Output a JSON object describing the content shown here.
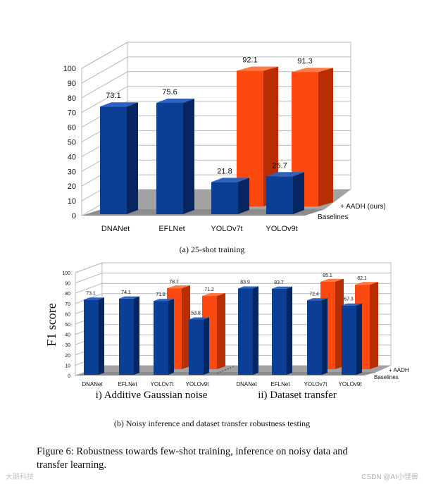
{
  "chart_data": [
    {
      "type": "bar",
      "style": "3d",
      "categories": [
        "DNANet",
        "EFLNet",
        "YOLOv7t",
        "YOLOv9t"
      ],
      "series": [
        {
          "name": "Baselines",
          "values": [
            73.1,
            75.6,
            21.8,
            25.7
          ]
        },
        {
          "name": "+ AADH (ours)",
          "values": [
            null,
            null,
            92.1,
            91.3
          ]
        }
      ],
      "ylim": [
        0,
        100
      ],
      "yticks": [
        "0",
        "10",
        "20",
        "30",
        "40",
        "50",
        "60",
        "70",
        "80",
        "90",
        "100"
      ],
      "title": "",
      "xlabel": "",
      "ylabel": ""
    },
    {
      "type": "bar",
      "style": "3d",
      "ylabel": "F1 score",
      "ylim": [
        0,
        100
      ],
      "yticks": [
        "0",
        "10",
        "20",
        "30",
        "40",
        "50",
        "60",
        "70",
        "80",
        "90",
        "100"
      ],
      "groups": [
        {
          "label": "i) Additive Gaussian noise",
          "categories": [
            "DNANet",
            "EFLNet",
            "YOLOv7t",
            "YOLOv9t"
          ],
          "series": [
            {
              "name": "Baselines",
              "values": [
                73.1,
                74.1,
                71.8,
                53.8
              ]
            },
            {
              "name": "+ AADH",
              "values": [
                null,
                null,
                78.7,
                71.2
              ]
            }
          ]
        },
        {
          "label": "ii) Dataset transfer",
          "categories": [
            "DNANet",
            "EFLNet",
            "YOLOv7t",
            "YOLOv9t"
          ],
          "series": [
            {
              "name": "Baselines",
              "values": [
                83.9,
                83.7,
                72.4,
                67.3
              ]
            },
            {
              "name": "+ AADH",
              "values": [
                null,
                null,
                85.1,
                82.1
              ]
            }
          ]
        }
      ]
    }
  ],
  "colors": {
    "baseline_front": "#0b3f96",
    "baseline_side": "#052660",
    "baseline_top": "#2d63bf",
    "ours_front": "#fb4910",
    "ours_side": "#b92d02",
    "ours_top": "#ff7a45",
    "floor": "#8c8c8c",
    "grid": "#b8b8b8"
  },
  "captions": {
    "a": "(a) 25-shot training",
    "b": "(b) Noisy inference and dataset transfer robustness testing",
    "figure_line1": "Figure 6:  Robustness towards few-shot training, inference on noisy data and",
    "figure_line2": "transfer learning."
  },
  "watermarks": {
    "left": "大鹅科技",
    "right": "CSDN @AI小怪兽"
  }
}
